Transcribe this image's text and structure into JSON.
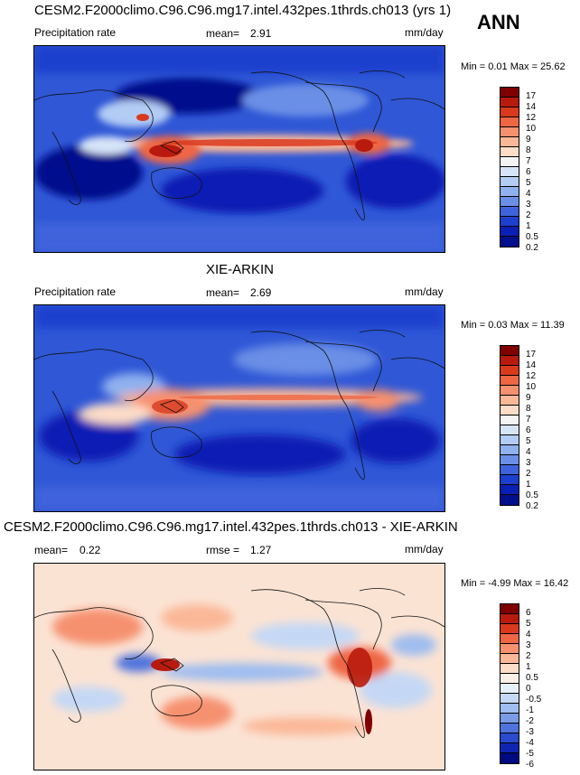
{
  "season": "ANN",
  "panels": [
    {
      "title": "CESM2.F2000climo.C96.C96.mg17.intel.432pes.1thrds.ch013 (yrs 1)",
      "variable": "Precipitation rate",
      "stat1_label": "mean=",
      "stat1_value": "2.91",
      "stat2_label": "",
      "stat2_value": "",
      "units": "mm/day",
      "range": "Min =  0.01 Max =  25.62",
      "levels": [
        "17",
        "14",
        "12",
        "10",
        "9",
        "8",
        "7",
        "6",
        "5",
        "4",
        "3",
        "2",
        "1",
        "0.5",
        "0.2"
      ],
      "colors": [
        "#7f0000",
        "#b81b0d",
        "#d93a1e",
        "#ee6644",
        "#f6916f",
        "#fbb898",
        "#fddcc8",
        "#f4f4f4",
        "#d6e4f8",
        "#b2ccf4",
        "#8fb1ee",
        "#6a8fe6",
        "#3f63dc",
        "#1d3fce",
        "#0a1fb4",
        "#000f8c"
      ]
    },
    {
      "title": "XIE-ARKIN",
      "variable": "Precipitation rate",
      "stat1_label": "mean=",
      "stat1_value": "2.69",
      "stat2_label": "",
      "stat2_value": "",
      "units": "mm/day",
      "range": "Min =  0.03 Max =  11.39",
      "levels": [
        "17",
        "14",
        "12",
        "10",
        "9",
        "8",
        "7",
        "6",
        "5",
        "4",
        "3",
        "2",
        "1",
        "0.5",
        "0.2"
      ],
      "colors": [
        "#7f0000",
        "#b81b0d",
        "#d93a1e",
        "#ee6644",
        "#f6916f",
        "#fbb898",
        "#fddcc8",
        "#f4f4f4",
        "#d6e4f8",
        "#b2ccf4",
        "#8fb1ee",
        "#6a8fe6",
        "#3f63dc",
        "#1d3fce",
        "#0a1fb4",
        "#000f8c"
      ]
    },
    {
      "title": "CESM2.F2000climo.C96.C96.mg17.intel.432pes.1thrds.ch013 - XIE-ARKIN",
      "variable": "",
      "stat1_label": "mean=",
      "stat1_value": "0.22",
      "stat2_label": "rmse =",
      "stat2_value": "1.27",
      "units": "mm/day",
      "range": "Min =  -4.99 Max =  16.42",
      "levels": [
        "6",
        "5",
        "4",
        "3",
        "2",
        "1",
        "0.5",
        "0",
        "-0.5",
        "-1",
        "-2",
        "-3",
        "-4",
        "-5",
        "-6"
      ],
      "colors": [
        "#7f0000",
        "#b81b0d",
        "#d93a1e",
        "#ee6644",
        "#f6916f",
        "#fbb898",
        "#fddcc8",
        "#fbf0e8",
        "#e6f0fb",
        "#c4d8f5",
        "#9fbdef",
        "#7a9be6",
        "#4f73dc",
        "#2a4bce",
        "#0f25b0",
        "#000a80"
      ]
    }
  ]
}
